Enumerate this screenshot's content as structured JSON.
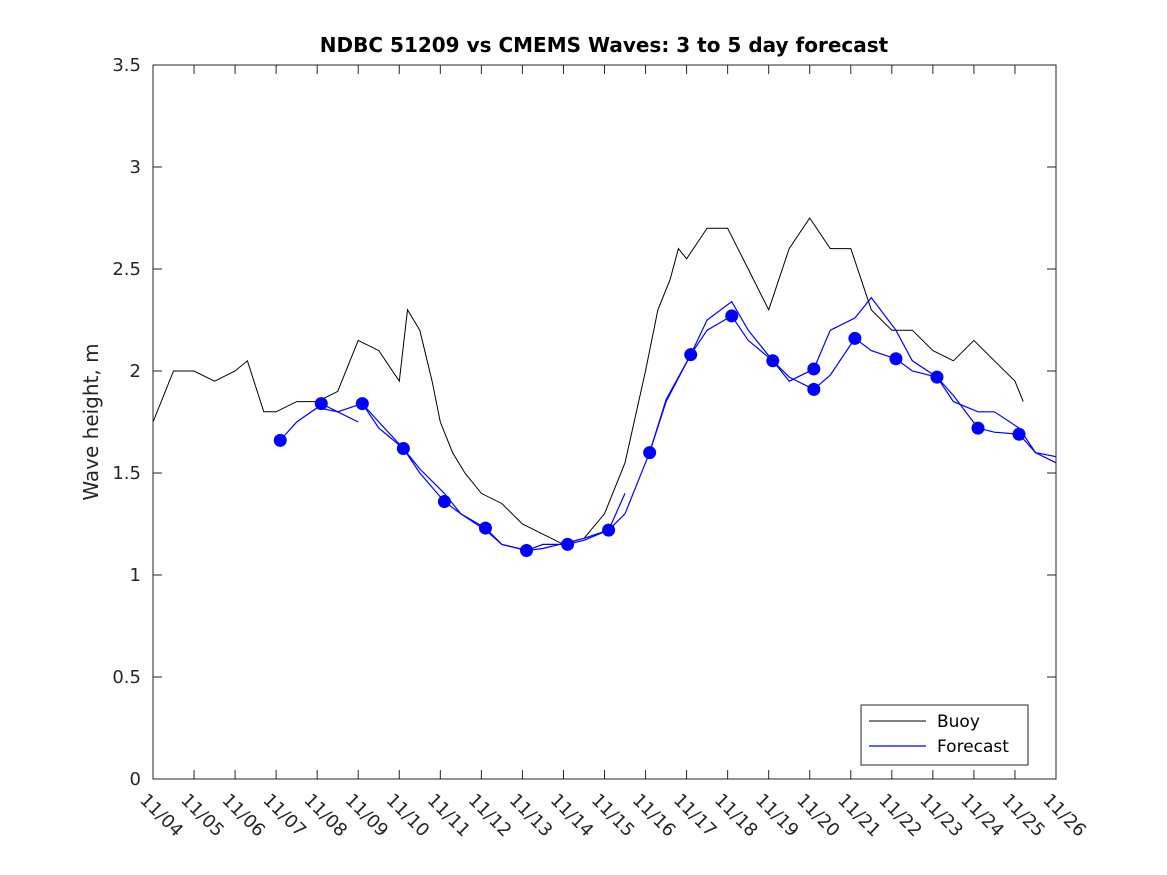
{
  "chart_data": {
    "type": "line",
    "title": "NDBC 51209 vs CMEMS Waves: 3 to 5 day forecast",
    "ylabel": "Wave height, m",
    "xlabel": "",
    "xlim": [
      0,
      22
    ],
    "ylim": [
      0,
      3.5
    ],
    "yticks": [
      0,
      0.5,
      1,
      1.5,
      2,
      2.5,
      3,
      3.5
    ],
    "ytick_labels": [
      "0",
      "0.5",
      "1",
      "1.5",
      "2",
      "2.5",
      "3",
      "3.5"
    ],
    "xtick_labels": [
      "11/04",
      "11/05",
      "11/06",
      "11/07",
      "11/08",
      "11/09",
      "11/10",
      "11/11",
      "11/12",
      "11/13",
      "11/14",
      "11/15",
      "11/16",
      "11/17",
      "11/18",
      "11/19",
      "11/20",
      "11/21",
      "11/22",
      "11/23",
      "11/24",
      "11/25",
      "11/26"
    ],
    "legend": {
      "location": "bottom-right",
      "entries": [
        "Buoy",
        "Forecast"
      ]
    },
    "colors": {
      "buoy": "#000000",
      "forecast": "#0000ff"
    },
    "series": [
      {
        "name": "Buoy",
        "color": "#000000",
        "type": "line",
        "x": [
          0.0,
          0.5,
          1.0,
          1.5,
          2.0,
          2.3,
          2.7,
          3.0,
          3.5,
          4.0,
          4.5,
          5.0,
          5.5,
          6.0,
          6.2,
          6.5,
          6.8,
          7.0,
          7.3,
          7.6,
          8.0,
          8.5,
          9.0,
          9.5,
          10.0,
          10.5,
          11.0,
          11.5,
          12.0,
          12.3,
          12.6,
          12.8,
          13.0,
          13.5,
          14.0,
          14.5,
          15.0,
          15.5,
          16.0,
          16.5,
          17.0,
          17.5,
          18.0,
          18.5,
          19.0,
          19.5,
          20.0,
          20.5,
          21.0,
          21.2
        ],
        "y": [
          1.75,
          2.0,
          2.0,
          1.95,
          2.0,
          2.05,
          1.8,
          1.8,
          1.85,
          1.85,
          1.9,
          2.15,
          2.1,
          1.95,
          2.3,
          2.2,
          1.95,
          1.75,
          1.6,
          1.5,
          1.4,
          1.35,
          1.25,
          1.2,
          1.15,
          1.18,
          1.3,
          1.55,
          2.0,
          2.3,
          2.45,
          2.6,
          2.55,
          2.7,
          2.7,
          2.5,
          2.3,
          2.6,
          2.75,
          2.6,
          2.6,
          2.3,
          2.2,
          2.2,
          2.1,
          2.05,
          2.15,
          2.05,
          1.95,
          1.85
        ]
      },
      {
        "name": "Forecast",
        "color": "#0000ff",
        "type": "line",
        "segments": [
          {
            "x": [
              3.1,
              3.5,
              4.0,
              4.5,
              5.0
            ],
            "y": [
              1.66,
              1.75,
              1.82,
              1.8,
              1.75
            ]
          },
          {
            "x": [
              4.1,
              4.5,
              5.1,
              5.5,
              6.1,
              6.5,
              7.1,
              7.5,
              8.1,
              8.5,
              9.1,
              9.5,
              10.1,
              10.5,
              11.1,
              11.5,
              12.1,
              12.5,
              13.1,
              13.5,
              14.1,
              14.5,
              15.1,
              15.5,
              16.1,
              16.5,
              17.1,
              17.5,
              18.1,
              18.5,
              19.1,
              19.5,
              20.1,
              20.5,
              21.1,
              21.5,
              22.0
            ],
            "y": [
              1.84,
              1.8,
              1.84,
              1.75,
              1.62,
              1.5,
              1.36,
              1.3,
              1.23,
              1.15,
              1.12,
              1.15,
              1.15,
              1.17,
              1.22,
              1.3,
              1.6,
              1.85,
              2.08,
              2.2,
              2.27,
              2.15,
              2.05,
              1.97,
              1.91,
              1.98,
              2.16,
              2.1,
              2.06,
              2.0,
              1.97,
              1.88,
              1.72,
              1.7,
              1.69,
              1.6,
              1.58
            ]
          },
          {
            "x": [
              5.1,
              5.5,
              6.1,
              6.5,
              7.1,
              7.5,
              8.1,
              8.5,
              9.1,
              9.5,
              10.1,
              10.5,
              11.1,
              11.5
            ],
            "y": [
              1.84,
              1.72,
              1.62,
              1.52,
              1.4,
              1.3,
              1.22,
              1.15,
              1.12,
              1.13,
              1.16,
              1.18,
              1.22,
              1.4
            ]
          },
          {
            "x": [
              12.1,
              12.5,
              13.1,
              13.5,
              14.1,
              14.5,
              15.1,
              15.5,
              16.1,
              16.5,
              17.1,
              17.5,
              18.1,
              18.5,
              19.1,
              19.5,
              20.1,
              20.5,
              21.1,
              21.5,
              22.0
            ],
            "y": [
              1.6,
              1.86,
              2.08,
              2.25,
              2.34,
              2.2,
              2.05,
              1.95,
              2.01,
              2.2,
              2.26,
              2.36,
              2.2,
              2.05,
              1.97,
              1.85,
              1.8,
              1.8,
              1.72,
              1.6,
              1.55
            ]
          }
        ],
        "markers_x": [
          3.1,
          4.1,
          5.1,
          6.1,
          7.1,
          8.1,
          9.1,
          10.1,
          11.1,
          12.1,
          13.1,
          14.1,
          15.1,
          16.1,
          16.1,
          17.1,
          18.1,
          19.1,
          20.1,
          21.1
        ],
        "markers_y": [
          1.66,
          1.84,
          1.84,
          1.62,
          1.36,
          1.23,
          1.12,
          1.15,
          1.22,
          1.6,
          2.08,
          2.27,
          2.05,
          2.01,
          1.91,
          2.16,
          2.06,
          1.97,
          1.72,
          1.69
        ]
      }
    ]
  }
}
